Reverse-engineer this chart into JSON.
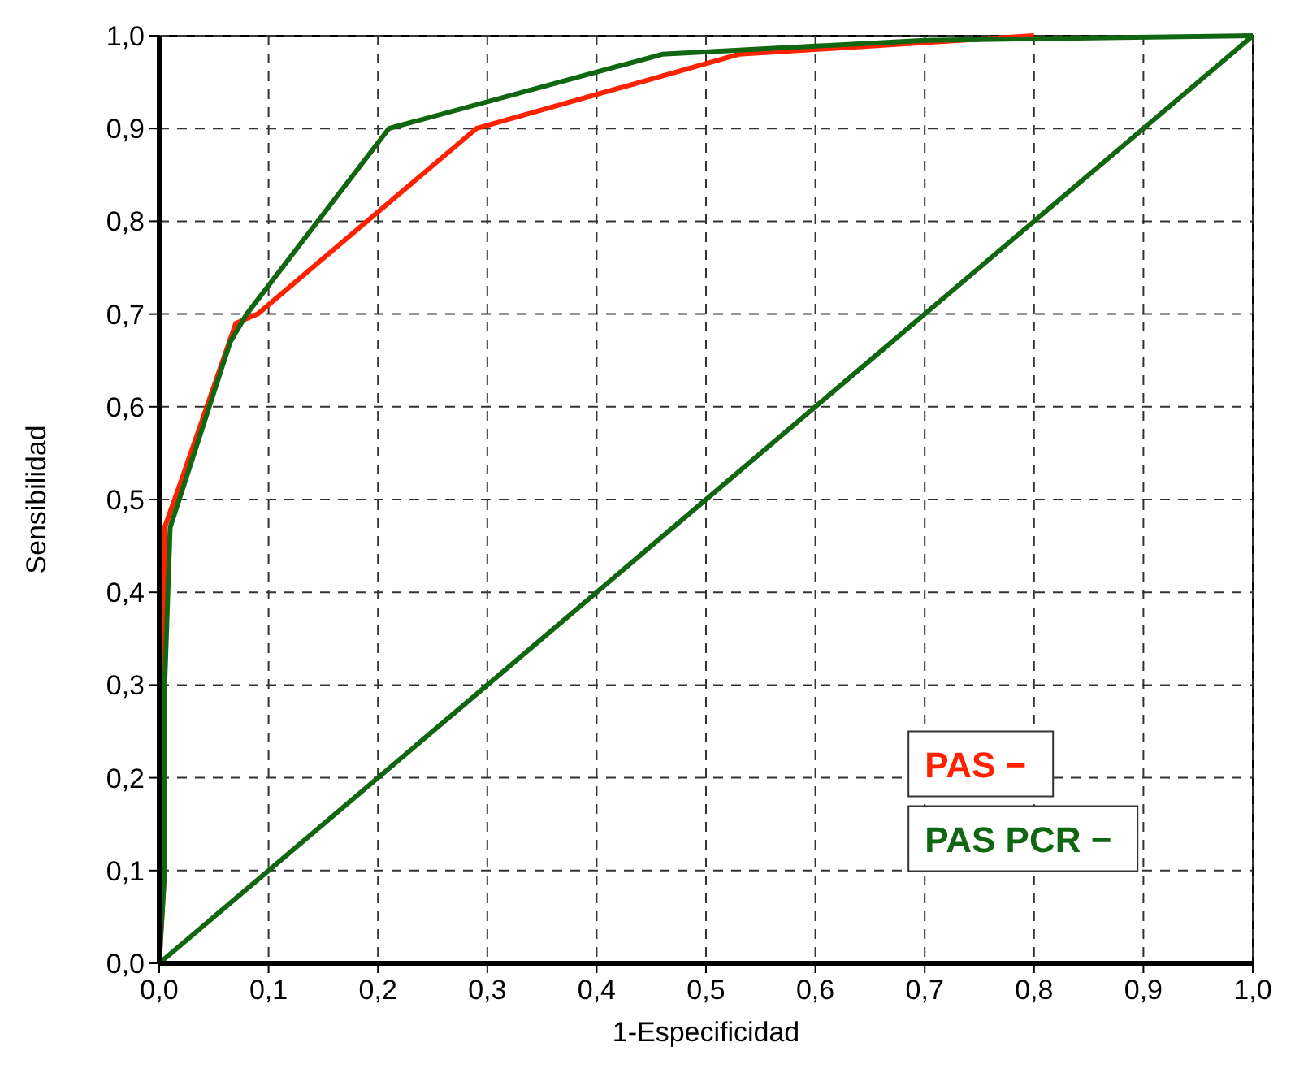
{
  "chart_data": {
    "type": "line",
    "xlabel": "1-Especificidad",
    "ylabel": "Sensibilidad",
    "xlim": [
      0,
      1
    ],
    "ylim": [
      0,
      1
    ],
    "xticks": [
      {
        "value": 0,
        "label": "0,0"
      },
      {
        "value": 0.1,
        "label": "0,1"
      },
      {
        "value": 0.2,
        "label": "0,2"
      },
      {
        "value": 0.3,
        "label": "0,3"
      },
      {
        "value": 0.4,
        "label": "0,4"
      },
      {
        "value": 0.5,
        "label": "0,5"
      },
      {
        "value": 0.6,
        "label": "0,6"
      },
      {
        "value": 0.7,
        "label": "0,7"
      },
      {
        "value": 0.8,
        "label": "0,8"
      },
      {
        "value": 0.9,
        "label": "0,9"
      },
      {
        "value": 1,
        "label": "1,0"
      }
    ],
    "yticks": [
      {
        "value": 0,
        "label": "0,0"
      },
      {
        "value": 0.1,
        "label": "0,1"
      },
      {
        "value": 0.2,
        "label": "0,2"
      },
      {
        "value": 0.3,
        "label": "0,3"
      },
      {
        "value": 0.4,
        "label": "0,4"
      },
      {
        "value": 0.5,
        "label": "0,5"
      },
      {
        "value": 0.6,
        "label": "0,6"
      },
      {
        "value": 0.7,
        "label": "0,7"
      },
      {
        "value": 0.8,
        "label": "0,8"
      },
      {
        "value": 0.9,
        "label": "0,9"
      },
      {
        "value": 1,
        "label": "1,0"
      }
    ],
    "grid": true,
    "legend": "bottom right",
    "line_style": "solid",
    "marker": "none",
    "series": [
      {
        "name": "PAS −",
        "color": "#ff2200",
        "x": [
          0,
          0.005,
          0.005,
          0.02,
          0.07,
          0.09,
          0.29,
          0.53,
          0.8
        ],
        "values": [
          0,
          0.1,
          0.47,
          0.52,
          0.69,
          0.7,
          0.9,
          0.98,
          1
        ]
      },
      {
        "name": "PAS PCR −",
        "color": "#116611",
        "x": [
          0,
          0.005,
          0.005,
          0.01,
          0.065,
          0.08,
          0.21,
          0.46,
          0.7,
          1
        ],
        "values": [
          0,
          0.1,
          0.3,
          0.47,
          0.67,
          0.7,
          0.9,
          0.98,
          0.995,
          1
        ]
      },
      {
        "color": "#116611",
        "x": [
          0,
          1
        ],
        "values": [
          0,
          1
        ]
      }
    ]
  }
}
